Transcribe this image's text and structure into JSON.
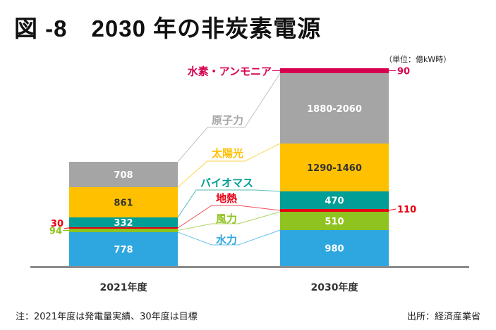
{
  "header": {
    "title": "図 -8　2030 年の非炭素電源",
    "unit": "（単位：億kW時）"
  },
  "footer": {
    "note": "注：2021年度は発電量実績、30年度は目標",
    "source": "出所：経済産業省"
  },
  "chart_data": {
    "type": "bar",
    "stacked": true,
    "title": "2030 年の非炭素電源",
    "unit": "億kW時",
    "categories": [
      "2021年度",
      "2030年度"
    ],
    "series": [
      {
        "name": "水力",
        "color": "#2EA7E0",
        "values": [
          778,
          980
        ],
        "labels": [
          "778",
          "980"
        ]
      },
      {
        "name": "風力",
        "color": "#8FC31F",
        "values": [
          94,
          510
        ],
        "labels": [
          "94",
          "510"
        ]
      },
      {
        "name": "地熱",
        "color": "#E60012",
        "values": [
          30,
          110
        ],
        "labels": [
          "30",
          "110"
        ]
      },
      {
        "name": "バイオマス",
        "color": "#009E96",
        "values": [
          332,
          470
        ],
        "labels": [
          "332",
          "470"
        ]
      },
      {
        "name": "太陽光",
        "color": "#FFC000",
        "values": [
          861,
          1375
        ],
        "labels": [
          "861",
          "1290-1460"
        ]
      },
      {
        "name": "原子力",
        "color": "#A5A5A5",
        "values": [
          708,
          1970
        ],
        "labels": [
          "708",
          "1880-2060"
        ]
      },
      {
        "name": "水素・アンモニア",
        "color": "#D7004F",
        "values": [
          0,
          90
        ],
        "labels": [
          "",
          "90"
        ]
      }
    ],
    "legend_label_colors": {
      "水素・アンモニア": "#D7004F",
      "原子力": "#A5A5A5",
      "太陽光": "#FFC000",
      "バイオマス": "#009E96",
      "地熱": "#E60012",
      "風力": "#8FC31F",
      "水力": "#2EA7E0"
    },
    "xlabel": "",
    "ylabel": "",
    "grid": false
  }
}
